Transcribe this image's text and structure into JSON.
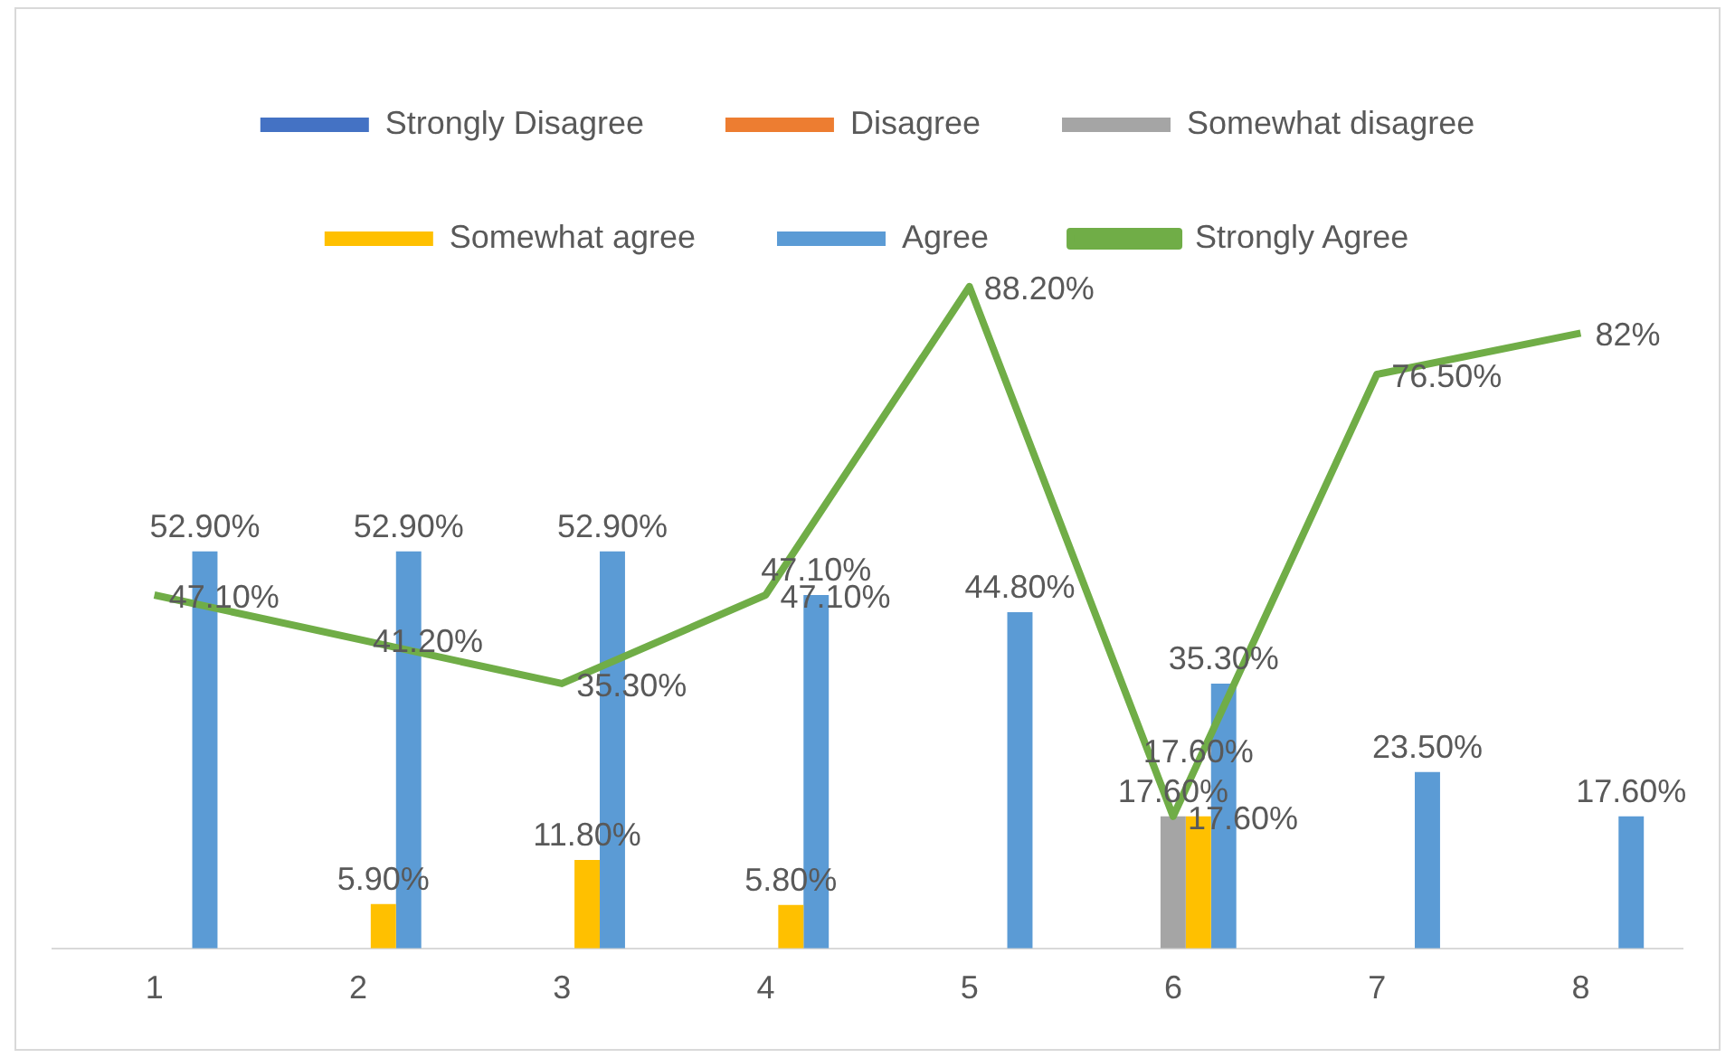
{
  "chart_data": {
    "type": "bar",
    "categories": [
      "1",
      "2",
      "3",
      "4",
      "5",
      "6",
      "7",
      "8"
    ],
    "tick_labels": "x",
    "grid": false,
    "legend": "top",
    "series": [
      {
        "name": "Strongly Disagree",
        "color": "#4472c4",
        "values": [
          null,
          null,
          null,
          null,
          null,
          null,
          null,
          null
        ]
      },
      {
        "name": "Disagree",
        "color": "#ed7d31",
        "values": [
          null,
          null,
          null,
          null,
          null,
          null,
          null,
          null
        ]
      },
      {
        "name": "Somewhat disagree",
        "color": "#a5a5a5",
        "values": [
          null,
          null,
          null,
          null,
          null,
          17.6,
          null,
          null
        ],
        "value_labels": [
          null,
          null,
          null,
          null,
          null,
          "17.60%",
          null,
          null
        ]
      },
      {
        "name": "Somewhat agree",
        "color": "#ffc000",
        "values": [
          null,
          5.9,
          11.8,
          5.8,
          null,
          17.6,
          null,
          null
        ],
        "value_labels": [
          null,
          "5.90%",
          "11.80%",
          "5.80%",
          null,
          "17.60%",
          null,
          null
        ]
      },
      {
        "name": "Agree",
        "color": "#5b9bd5",
        "values": [
          52.9,
          52.9,
          52.9,
          47.1,
          44.8,
          35.3,
          23.5,
          17.6
        ],
        "value_labels": [
          "52.90%",
          "52.90%",
          "52.90%",
          "47.10%",
          "44.80%",
          "35.30%",
          "23.50%",
          "17.60%"
        ]
      },
      {
        "name": "Strongly Agree",
        "type": "line",
        "color": "#70ad47",
        "values": [
          47.1,
          41.2,
          35.3,
          47.1,
          88.2,
          17.6,
          76.5,
          82
        ],
        "value_labels": [
          "47.10%",
          "41.20%",
          "35.30%",
          "47.10%",
          "88.20%",
          "17.60%",
          "76.50%",
          "82%"
        ]
      }
    ]
  }
}
